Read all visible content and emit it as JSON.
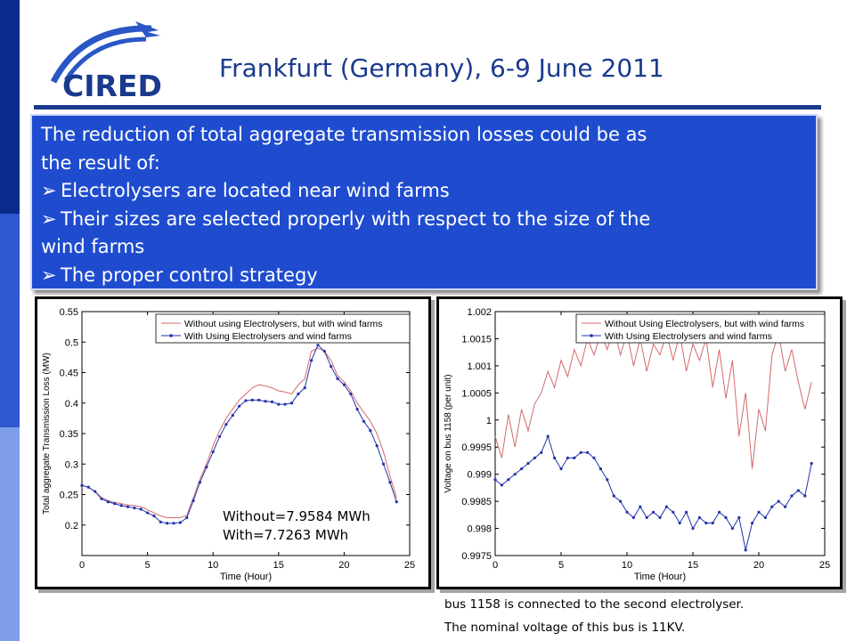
{
  "logo": {
    "text": "CIRED",
    "colors": {
      "brand": "#1a3a8e",
      "arc": "#2a56c6"
    }
  },
  "header": {
    "conference": "Frankfurt (Germany), 6-9 June 2011"
  },
  "bullets": {
    "intro_line1": "The reduction of total aggregate transmission losses could be as",
    "intro_line2": "the result of:",
    "item1": "Electrolysers are located near wind farms",
    "item2_line1": "Their sizes are selected properly with respect to the size of the",
    "item2_line2": "wind farms",
    "item3": "The proper control strategy",
    "bullet_icon": "arrow-bullet-icon"
  },
  "notes": {
    "without": "Without=7.9584 MWh",
    "with": "With=7.7263 MWh"
  },
  "caption": {
    "line1": "bus 1158 is connected to the second electrolyser.",
    "line2": "The nominal voltage of this bus is 11KV."
  },
  "chart_data": [
    {
      "type": "line",
      "xlabel": "Time (Hour)",
      "ylabel": "Total aggregate Transmission Loss (MW)",
      "xlim": [
        0,
        25
      ],
      "ylim": [
        0.15,
        0.55
      ],
      "xticks": [
        "0",
        "5",
        "10",
        "15",
        "20",
        "25"
      ],
      "yticks": [
        "0.2",
        "0.25",
        "0.3",
        "0.35",
        "0.4",
        "0.45",
        "0.5",
        "0.55"
      ],
      "legend": "top-right",
      "series": [
        {
          "name": "Without using Electrolysers, but with wind farms",
          "color": "#d46a6a",
          "marker": "none",
          "x": [
            0,
            0.5,
            1,
            1.5,
            2,
            2.5,
            3,
            3.5,
            4,
            4.5,
            5,
            5.5,
            6,
            6.5,
            7,
            7.5,
            8,
            8.5,
            9,
            9.5,
            10,
            10.5,
            11,
            11.5,
            12,
            12.5,
            13,
            13.5,
            14,
            14.5,
            15,
            15.5,
            16,
            16.5,
            17,
            17.5,
            18,
            18.5,
            19,
            19.5,
            20,
            20.5,
            21,
            21.5,
            22,
            22.5,
            23,
            23.5,
            24
          ],
          "y": [
            0.265,
            0.262,
            0.255,
            0.245,
            0.24,
            0.237,
            0.235,
            0.233,
            0.232,
            0.23,
            0.225,
            0.22,
            0.215,
            0.212,
            0.212,
            0.212,
            0.216,
            0.245,
            0.275,
            0.3,
            0.33,
            0.355,
            0.375,
            0.39,
            0.405,
            0.415,
            0.425,
            0.43,
            0.428,
            0.425,
            0.42,
            0.418,
            0.415,
            0.43,
            0.44,
            0.485,
            0.49,
            0.485,
            0.47,
            0.445,
            0.435,
            0.42,
            0.4,
            0.385,
            0.37,
            0.35,
            0.32,
            0.28,
            0.245
          ]
        },
        {
          "name": "With Using Electrolysers and wind farms",
          "color": "#2233aa",
          "marker": "dot",
          "x": [
            0,
            0.5,
            1,
            1.5,
            2,
            2.5,
            3,
            3.5,
            4,
            4.5,
            5,
            5.5,
            6,
            6.5,
            7,
            7.5,
            8,
            8.5,
            9,
            9.5,
            10,
            10.5,
            11,
            11.5,
            12,
            12.5,
            13,
            13.5,
            14,
            14.5,
            15,
            15.5,
            16,
            16.5,
            17,
            17.5,
            18,
            18.5,
            19,
            19.5,
            20,
            20.5,
            21,
            21.5,
            22,
            22.5,
            23,
            23.5,
            24
          ],
          "y": [
            0.265,
            0.262,
            0.255,
            0.243,
            0.238,
            0.235,
            0.232,
            0.23,
            0.228,
            0.226,
            0.22,
            0.215,
            0.205,
            0.203,
            0.203,
            0.204,
            0.212,
            0.24,
            0.27,
            0.295,
            0.32,
            0.345,
            0.365,
            0.38,
            0.395,
            0.404,
            0.405,
            0.405,
            0.403,
            0.402,
            0.398,
            0.398,
            0.4,
            0.415,
            0.425,
            0.47,
            0.495,
            0.485,
            0.46,
            0.44,
            0.43,
            0.415,
            0.39,
            0.37,
            0.355,
            0.33,
            0.3,
            0.27,
            0.238
          ]
        }
      ]
    },
    {
      "type": "line",
      "xlabel": "Time (Hour)",
      "ylabel": "Voltage on bus 1158 (per unit)",
      "xlim": [
        0,
        25
      ],
      "ylim": [
        0.9975,
        1.002
      ],
      "xticks": [
        "0",
        "5",
        "10",
        "15",
        "20",
        "25"
      ],
      "yticks": [
        "0.9975",
        "0.998",
        "0.9985",
        "0.999",
        "0.9995",
        "1",
        "1.0005",
        "1.001",
        "1.0015",
        "1.002"
      ],
      "legend": "top-right",
      "series": [
        {
          "name": "Without Using Electrolysers, but with wind farms",
          "color": "#d46a6a",
          "marker": "none",
          "x": [
            0,
            0.5,
            1,
            1.5,
            2,
            2.5,
            3,
            3.5,
            4,
            4.5,
            5,
            5.5,
            6,
            6.5,
            7,
            7.5,
            8,
            8.5,
            9,
            9.5,
            10,
            10.5,
            11,
            11.5,
            12,
            12.5,
            13,
            13.5,
            14,
            14.5,
            15,
            15.5,
            16,
            16.5,
            17,
            17.5,
            18,
            18.5,
            19,
            19.5,
            20,
            20.5,
            21,
            21.5,
            22,
            22.5,
            23,
            23.5,
            24
          ],
          "y": [
            0.9997,
            0.9993,
            1.0001,
            0.9995,
            1.0002,
            0.9998,
            1.0003,
            1.0005,
            1.0009,
            1.0006,
            1.0011,
            1.0008,
            1.0013,
            1.001,
            1.0015,
            1.0012,
            1.0016,
            1.0013,
            1.0017,
            1.0012,
            1.0016,
            1.001,
            1.0015,
            1.0009,
            1.0014,
            1.0012,
            1.0016,
            1.0011,
            1.0016,
            1.0009,
            1.0014,
            1.0011,
            1.0015,
            1.0006,
            1.0013,
            1.0004,
            1.0011,
            0.9997,
            1.0005,
            0.9991,
            1.0002,
            0.9998,
            1.0012,
            1.0016,
            1.0009,
            1.0013,
            1.0007,
            1.0002,
            1.0007
          ]
        },
        {
          "name": "With Using Electrolysers and wind farms",
          "color": "#2233aa",
          "marker": "dot",
          "x": [
            0,
            0.5,
            1,
            1.5,
            2,
            2.5,
            3,
            3.5,
            4,
            4.5,
            5,
            5.5,
            6,
            6.5,
            7,
            7.5,
            8,
            8.5,
            9,
            9.5,
            10,
            10.5,
            11,
            11.5,
            12,
            12.5,
            13,
            13.5,
            14,
            14.5,
            15,
            15.5,
            16,
            16.5,
            17,
            17.5,
            18,
            18.5,
            19,
            19.5,
            20,
            20.5,
            21,
            21.5,
            22,
            22.5,
            23,
            23.5,
            24
          ],
          "y": [
            0.9989,
            0.9988,
            0.9989,
            0.999,
            0.9991,
            0.9992,
            0.9993,
            0.9994,
            0.9997,
            0.9993,
            0.9991,
            0.9993,
            0.9993,
            0.9994,
            0.9994,
            0.9993,
            0.9991,
            0.9989,
            0.9986,
            0.9985,
            0.9983,
            0.9982,
            0.9984,
            0.9982,
            0.9983,
            0.9982,
            0.9984,
            0.9983,
            0.9981,
            0.9983,
            0.998,
            0.9982,
            0.9981,
            0.9981,
            0.9983,
            0.9982,
            0.998,
            0.9982,
            0.9976,
            0.9981,
            0.9983,
            0.9982,
            0.9984,
            0.9985,
            0.9984,
            0.9986,
            0.9987,
            0.9986,
            0.9992
          ]
        }
      ]
    }
  ]
}
